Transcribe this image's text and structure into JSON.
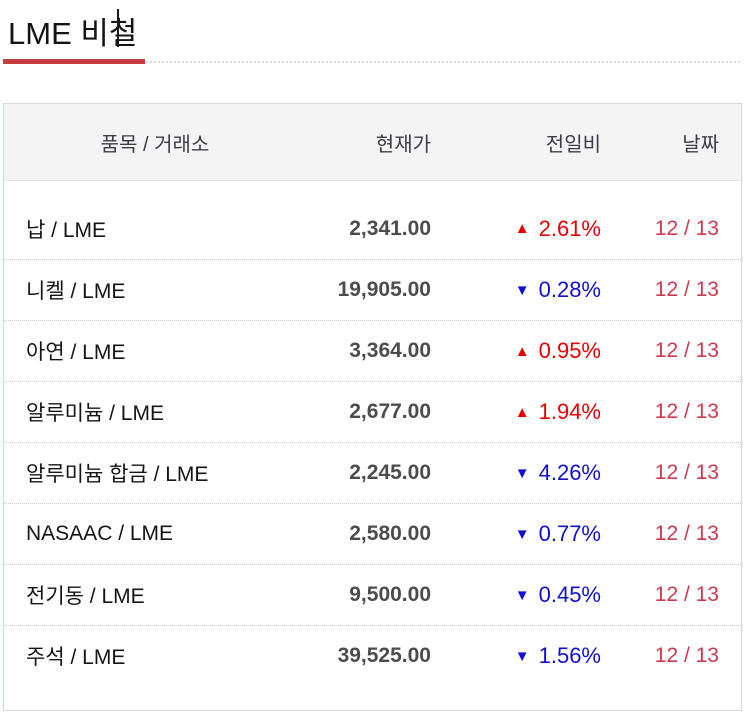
{
  "page": {
    "title": "LME 비철"
  },
  "table": {
    "headers": {
      "item": "품목 / 거래소",
      "price": "현재가",
      "change": "전일비",
      "date": "날짜"
    },
    "rows": [
      {
        "item": "납 / LME",
        "price": "2,341.00",
        "direction": "up",
        "arrow": "▲",
        "change": "2.61%",
        "date": "12 / 13"
      },
      {
        "item": "니켈 / LME",
        "price": "19,905.00",
        "direction": "down",
        "arrow": "▼",
        "change": "0.28%",
        "date": "12 / 13"
      },
      {
        "item": "아연 / LME",
        "price": "3,364.00",
        "direction": "up",
        "arrow": "▲",
        "change": "0.95%",
        "date": "12 / 13"
      },
      {
        "item": "알루미늄 / LME",
        "price": "2,677.00",
        "direction": "up",
        "arrow": "▲",
        "change": "1.94%",
        "date": "12 / 13"
      },
      {
        "item": "알루미늄 합금 / LME",
        "price": "2,245.00",
        "direction": "down",
        "arrow": "▼",
        "change": "4.26%",
        "date": "12 / 13"
      },
      {
        "item": "NASAAC / LME",
        "price": "2,580.00",
        "direction": "down",
        "arrow": "▼",
        "change": "0.77%",
        "date": "12 / 13"
      },
      {
        "item": "전기동 / LME",
        "price": "9,500.00",
        "direction": "down",
        "arrow": "▼",
        "change": "0.45%",
        "date": "12 / 13"
      },
      {
        "item": "주석 / LME",
        "price": "39,525.00",
        "direction": "down",
        "arrow": "▼",
        "change": "1.56%",
        "date": "12 / 13"
      }
    ]
  },
  "colors": {
    "up_red": "#e60000",
    "down_blue": "#1010d0",
    "date_red": "#cd3a4e",
    "accent_red": "#c53b3e"
  }
}
